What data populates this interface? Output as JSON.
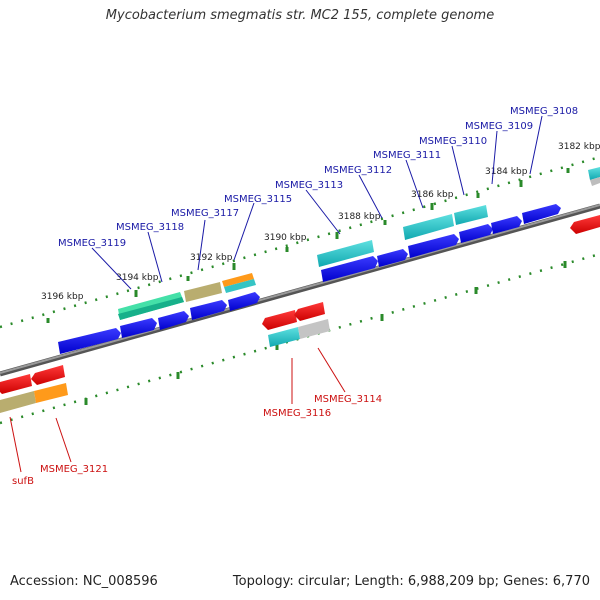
{
  "title": "Mycobacterium smegmatis str. MC2 155, complete genome",
  "footer": {
    "accession_label": "Accession:",
    "accession": "NC_008596",
    "topology_text": "Topology: circular; Length: 6,988,209 bp; Genes: 6,770"
  },
  "colors": {
    "forward_label": "#1a1aa6",
    "reverse_label": "#cc1111",
    "backbone": "#808080",
    "tick": "#2a8a2a"
  },
  "ruler": {
    "tick_labels": [
      "3196 kbp",
      "3194 kbp",
      "3192 kbp",
      "3190 kbp",
      "3188 kbp",
      "3186 kbp",
      "3184 kbp",
      "3182 kbp"
    ]
  },
  "genes_forward": [
    "MSMEG_3119",
    "MSMEG_3118",
    "MSMEG_3117",
    "MSMEG_3115",
    "MSMEG_3113",
    "MSMEG_3112",
    "MSMEG_3111",
    "MSMEG_3110",
    "MSMEG_3109",
    "MSMEG_3108"
  ],
  "genes_reverse": [
    "MSMEG_3116",
    "MSMEG_3114",
    "sufB",
    "MSMEG_3121"
  ]
}
